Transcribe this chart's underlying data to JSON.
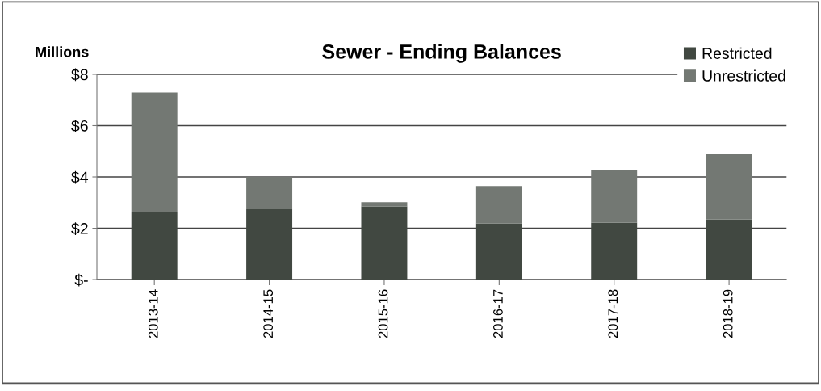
{
  "chart_data": {
    "type": "bar",
    "title": "Sewer - Ending Balances",
    "ylabel": "Millions",
    "categories": [
      "2013-14",
      "2014-15",
      "2015-16",
      "2016-17",
      "2017-18",
      "2018-19"
    ],
    "stacked": true,
    "series": [
      {
        "name": "Restricted",
        "color": "#414841",
        "values": [
          2.65,
          2.74,
          2.85,
          2.19,
          2.21,
          2.34
        ]
      },
      {
        "name": "Unrestricted",
        "color": "#737873",
        "values": [
          4.64,
          1.26,
          0.17,
          1.46,
          2.05,
          2.54
        ]
      }
    ],
    "ylim": [
      0,
      8
    ],
    "yticks": [
      {
        "value": 0,
        "label": "$-"
      },
      {
        "value": 2,
        "label": "$2"
      },
      {
        "value": 4,
        "label": "$4"
      },
      {
        "value": 6,
        "label": "$6"
      },
      {
        "value": 8,
        "label": "$8"
      }
    ],
    "grid": "y",
    "legend": "top right"
  }
}
